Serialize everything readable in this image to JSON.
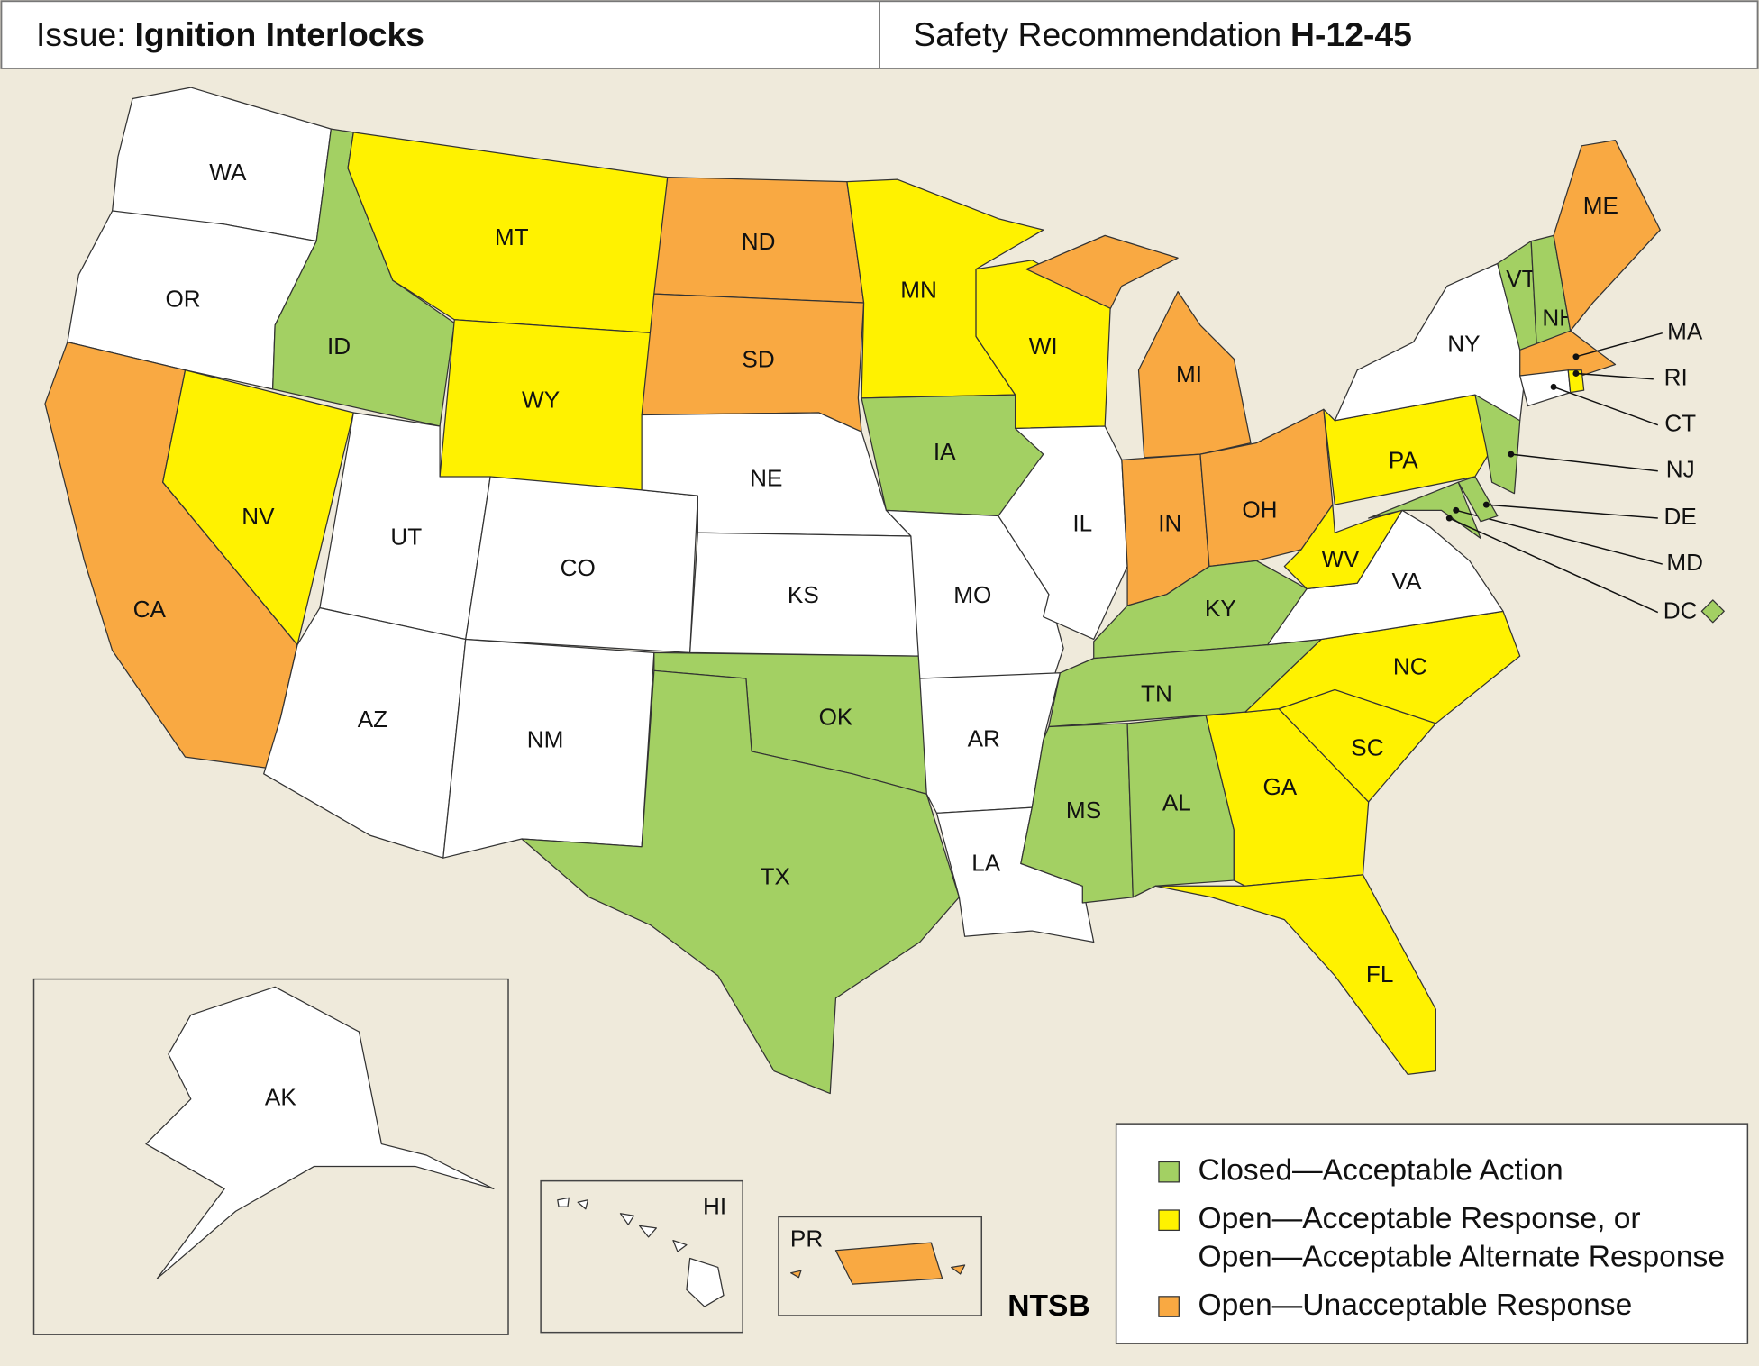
{
  "header": {
    "left": {
      "label": "Issue:",
      "value": "Ignition Interlocks"
    },
    "right": {
      "label": "Safety Recommendation",
      "value": "H-12-45"
    }
  },
  "states": [
    {
      "label": "WA",
      "color": "#ffffff"
    },
    {
      "label": "OR",
      "color": "#ffffff"
    },
    {
      "label": "CA",
      "color": "#f9a942"
    },
    {
      "label": "ID",
      "color": "#a3d063"
    },
    {
      "label": "NV",
      "color": "#fff200"
    },
    {
      "label": "MT",
      "color": "#fff200"
    },
    {
      "label": "WY",
      "color": "#fff200"
    },
    {
      "label": "UT",
      "color": "#ffffff"
    },
    {
      "label": "CO",
      "color": "#ffffff"
    },
    {
      "label": "AZ",
      "color": "#ffffff"
    },
    {
      "label": "NM",
      "color": "#ffffff"
    },
    {
      "label": "ND",
      "color": "#f9a942"
    },
    {
      "label": "SD",
      "color": "#f9a942"
    },
    {
      "label": "NE",
      "color": "#ffffff"
    },
    {
      "label": "KS",
      "color": "#ffffff"
    },
    {
      "label": "OK",
      "color": "#a3d063"
    },
    {
      "label": "TX",
      "color": "#a3d063"
    },
    {
      "label": "MN",
      "color": "#fff200"
    },
    {
      "label": "IA",
      "color": "#a3d063"
    },
    {
      "label": "MO",
      "color": "#ffffff"
    },
    {
      "label": "AR",
      "color": "#ffffff"
    },
    {
      "label": "LA",
      "color": "#ffffff"
    },
    {
      "label": "WI",
      "color": "#fff200"
    },
    {
      "label": "IL",
      "color": "#ffffff"
    },
    {
      "label": "MI",
      "color": "#f9a942"
    },
    {
      "label": "IN",
      "color": "#f9a942"
    },
    {
      "label": "OH",
      "color": "#f9a942"
    },
    {
      "label": "KY",
      "color": "#a3d063"
    },
    {
      "label": "TN",
      "color": "#a3d063"
    },
    {
      "label": "MS",
      "color": "#a3d063"
    },
    {
      "label": "AL",
      "color": "#a3d063"
    },
    {
      "label": "GA",
      "color": "#fff200"
    },
    {
      "label": "FL",
      "color": "#fff200"
    },
    {
      "label": "SC",
      "color": "#fff200"
    },
    {
      "label": "NC",
      "color": "#fff200"
    },
    {
      "label": "VA",
      "color": "#ffffff"
    },
    {
      "label": "WV",
      "color": "#fff200"
    },
    {
      "label": "PA",
      "color": "#fff200"
    },
    {
      "label": "NY",
      "color": "#ffffff"
    },
    {
      "label": "NJ",
      "color": "#a3d063"
    },
    {
      "label": "MD",
      "color": "#a3d063"
    },
    {
      "label": "DE",
      "color": "#a3d063"
    },
    {
      "label": "VT",
      "color": "#a3d063"
    },
    {
      "label": "NH",
      "color": "#a3d063"
    },
    {
      "label": "ME",
      "color": "#f9a942"
    },
    {
      "label": "MA",
      "color": "#f9a942"
    },
    {
      "label": "CT",
      "color": "#ffffff"
    },
    {
      "label": "RI",
      "color": "#fff200"
    },
    {
      "label": "DC",
      "color": "#a3d063"
    },
    {
      "label": "AK",
      "color": "#ffffff"
    },
    {
      "label": "HI",
      "color": "#ffffff"
    },
    {
      "label": "PR",
      "color": "#f9a942"
    }
  ],
  "legend": [
    {
      "lines": [
        "Closed—Acceptable Action"
      ],
      "color": "#a3d063"
    },
    {
      "lines": [
        "Open—Acceptable Response, or",
        "Open—Acceptable Alternate Response"
      ],
      "color": "#fff200"
    },
    {
      "lines": [
        "Open—Unacceptable Response"
      ],
      "color": "#f9a942"
    }
  ],
  "source": "NTSB"
}
